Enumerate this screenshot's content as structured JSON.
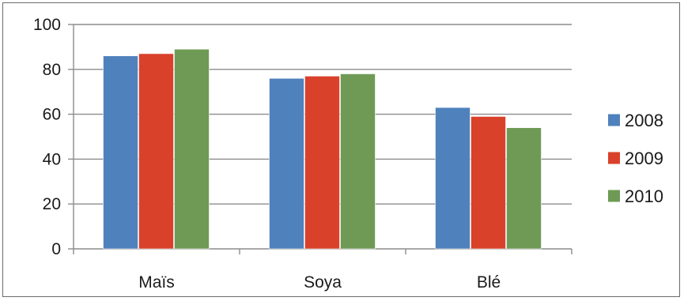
{
  "chart_data": {
    "type": "bar",
    "categories": [
      "Maïs",
      "Soya",
      "Blé"
    ],
    "series": [
      {
        "name": "2008",
        "values": [
          86,
          76,
          63
        ],
        "color": "#4f81bd"
      },
      {
        "name": "2009",
        "values": [
          87,
          77,
          59
        ],
        "color": "#d9412b"
      },
      {
        "name": "2010",
        "values": [
          89,
          78,
          54
        ],
        "color": "#6f9a55"
      }
    ],
    "ylim": [
      0,
      100
    ],
    "yticks": [
      "0",
      "20",
      "40",
      "60",
      "80",
      "100"
    ],
    "grid": true,
    "legend_position": "right"
  }
}
